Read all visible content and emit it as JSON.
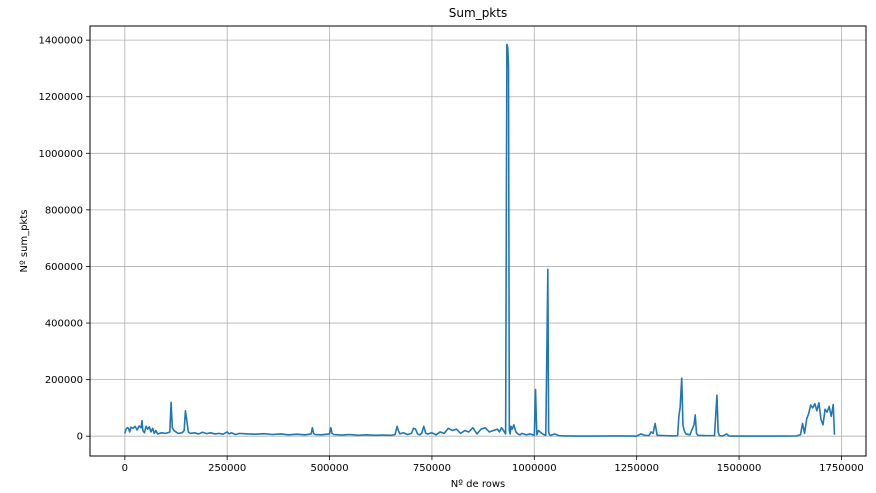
{
  "chart_data": {
    "type": "line",
    "title": "Sum_pkts",
    "xlabel": "Nº de rows",
    "ylabel": "Nº sum_pkts",
    "xlim": [
      -85000,
      1810000
    ],
    "ylim": [
      -70000,
      1450000
    ],
    "xticks": [
      0,
      250000,
      500000,
      750000,
      1000000,
      1250000,
      1500000,
      1750000
    ],
    "yticks": [
      0,
      200000,
      400000,
      600000,
      800000,
      1000000,
      1200000,
      1400000
    ],
    "grid": true,
    "line_color": "#1f77b4",
    "series": [
      {
        "x": [
          0,
          3000,
          6000,
          9000,
          12000,
          15000,
          20000,
          25000,
          30000,
          35000,
          40000,
          42000,
          44000,
          48000,
          52000,
          56000,
          60000,
          64000,
          68000,
          72000,
          76000,
          80000,
          90000,
          100000,
          110000,
          113000,
          116000,
          120000,
          125000,
          130000,
          140000,
          145000,
          148000,
          151000,
          155000,
          160000,
          170000,
          180000,
          190000,
          200000,
          210000,
          220000,
          230000,
          240000,
          250000,
          255000,
          260000,
          270000,
          280000,
          300000,
          320000,
          340000,
          360000,
          380000,
          400000,
          420000,
          440000,
          455000,
          458000,
          461000,
          465000,
          480000,
          500000,
          503000,
          506000,
          510000,
          530000,
          550000,
          570000,
          590000,
          610000,
          630000,
          650000,
          660000,
          665000,
          668000,
          672000,
          680000,
          690000,
          700000,
          705000,
          710000,
          715000,
          720000,
          725000,
          730000,
          735000,
          740000,
          750000,
          760000,
          770000,
          780000,
          790000,
          800000,
          810000,
          820000,
          830000,
          840000,
          850000,
          860000,
          870000,
          880000,
          890000,
          900000,
          910000,
          915000,
          920000,
          925000,
          930000,
          933000,
          935000,
          937000,
          939000,
          941000,
          943000,
          946000,
          950000,
          955000,
          960000,
          965000,
          970000,
          980000,
          990000,
          1000000,
          1003000,
          1006000,
          1010000,
          1020000,
          1028000,
          1031000,
          1033000,
          1035000,
          1037000,
          1040000,
          1050000,
          1060000,
          1070000,
          1080000,
          1100000,
          1150000,
          1200000,
          1250000,
          1260000,
          1270000,
          1280000,
          1285000,
          1290000,
          1295000,
          1300000,
          1320000,
          1340000,
          1350000,
          1353000,
          1356000,
          1360000,
          1363000,
          1366000,
          1370000,
          1380000,
          1390000,
          1393000,
          1396000,
          1400000,
          1420000,
          1440000,
          1446000,
          1449000,
          1452000,
          1460000,
          1470000,
          1475000,
          1480000,
          1500000,
          1550000,
          1600000,
          1640000,
          1650000,
          1655000,
          1660000,
          1665000,
          1670000,
          1675000,
          1680000,
          1685000,
          1690000,
          1695000,
          1700000,
          1705000,
          1710000,
          1715000,
          1720000,
          1725000,
          1730000,
          1733000
        ],
        "y": [
          10000,
          25000,
          30000,
          28000,
          15000,
          32000,
          28000,
          35000,
          22000,
          36000,
          30000,
          55000,
          20000,
          12000,
          35000,
          25000,
          33000,
          15000,
          28000,
          10000,
          20000,
          8000,
          12000,
          10000,
          15000,
          120000,
          30000,
          20000,
          15000,
          10000,
          12000,
          20000,
          90000,
          60000,
          15000,
          10000,
          12000,
          8000,
          14000,
          9000,
          12000,
          8000,
          10000,
          7000,
          15000,
          8000,
          12000,
          6000,
          10000,
          8000,
          7000,
          9000,
          6000,
          8000,
          5000,
          7000,
          5000,
          8000,
          30000,
          10000,
          6000,
          5000,
          8000,
          30000,
          10000,
          6000,
          4000,
          6000,
          3000,
          5000,
          3000,
          4000,
          3000,
          6000,
          35000,
          20000,
          8000,
          12000,
          6000,
          10000,
          28000,
          25000,
          8000,
          5000,
          10000,
          35000,
          10000,
          8000,
          12000,
          5000,
          15000,
          10000,
          28000,
          20000,
          25000,
          10000,
          20000,
          15000,
          30000,
          8000,
          25000,
          30000,
          15000,
          20000,
          25000,
          15000,
          30000,
          20000,
          8000,
          1385000,
          1375000,
          1310000,
          20000,
          8000,
          35000,
          25000,
          40000,
          15000,
          8000,
          5000,
          10000,
          5000,
          8000,
          3000,
          165000,
          5000,
          20000,
          8000,
          3000,
          340000,
          590000,
          15000,
          5000,
          3000,
          8000,
          2000,
          1000,
          1000,
          500,
          500,
          1000,
          500,
          8000,
          3000,
          2000,
          15000,
          10000,
          45000,
          3000,
          2000,
          1000,
          2000,
          70000,
          100000,
          205000,
          40000,
          20000,
          8000,
          5000,
          40000,
          75000,
          10000,
          3000,
          2000,
          2000,
          145000,
          15000,
          2000,
          1000,
          8000,
          1000,
          500,
          500,
          500,
          500,
          1000,
          5000,
          45000,
          10000,
          60000,
          80000,
          110000,
          100000,
          115000,
          90000,
          118000,
          60000,
          40000,
          95000,
          85000,
          105000,
          70000,
          112000,
          5000
        ]
      }
    ]
  }
}
